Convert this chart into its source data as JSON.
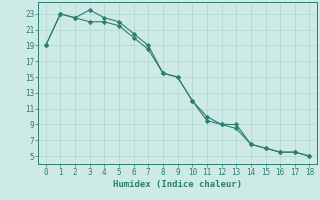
{
  "line1_x": [
    0,
    1,
    2,
    3,
    4,
    5,
    6,
    7,
    8,
    9,
    10,
    11,
    12,
    13,
    14,
    15,
    16,
    17,
    18
  ],
  "line1_y": [
    19,
    23,
    22.5,
    23.5,
    22.5,
    22,
    20.5,
    19,
    15.5,
    15,
    12,
    10,
    9,
    8.5,
    6.5,
    6,
    5.5,
    5.5,
    5
  ],
  "line2_x": [
    0,
    1,
    2,
    3,
    4,
    5,
    6,
    7,
    8,
    9,
    10,
    11,
    12,
    13,
    14,
    15,
    16,
    17,
    18
  ],
  "line2_y": [
    19,
    23,
    22.5,
    22,
    22,
    21.5,
    20,
    18.5,
    15.5,
    15,
    12,
    9.5,
    9,
    9,
    6.5,
    6,
    5.5,
    5.5,
    5
  ],
  "line_color": "#2e7d6e",
  "marker": "D",
  "marker_size": 2.2,
  "xlabel": "Humidex (Indice chaleur)",
  "xlim": [
    -0.5,
    18.5
  ],
  "ylim": [
    4,
    24.5
  ],
  "yticks": [
    5,
    7,
    9,
    11,
    13,
    15,
    17,
    19,
    21,
    23
  ],
  "xticks": [
    0,
    1,
    2,
    3,
    4,
    5,
    6,
    7,
    8,
    9,
    10,
    11,
    12,
    13,
    14,
    15,
    16,
    17,
    18
  ],
  "bg_color": "#ceeae6",
  "grid_color": "#afd8d2",
  "label_fontsize": 6.5,
  "tick_fontsize": 5.5,
  "line_width": 0.8
}
